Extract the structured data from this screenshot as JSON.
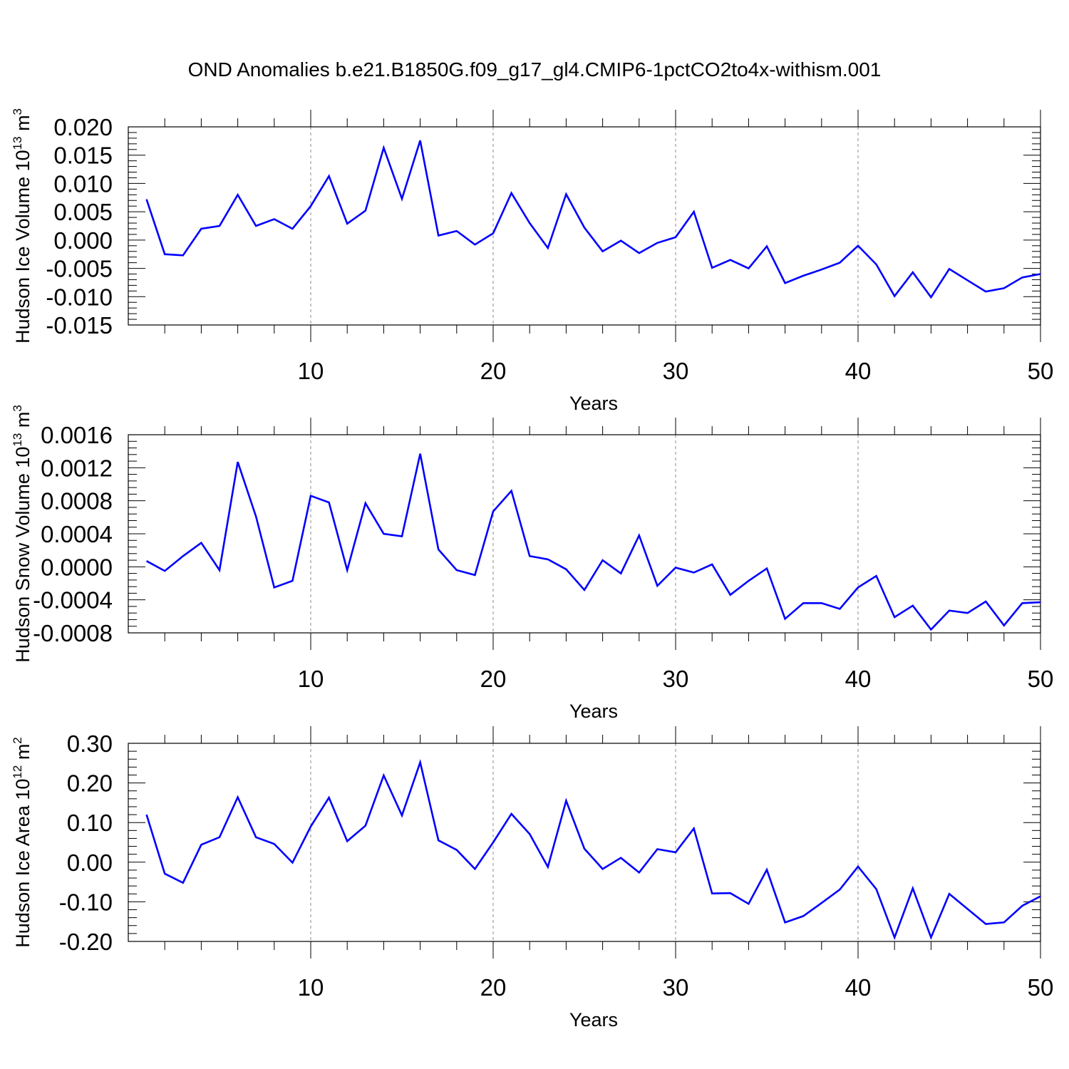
{
  "title": "OND Anomalies b.e21.B1850G.f09_g17_gl4.CMIP6-1pctCO2to4x-withism.001",
  "line_color": "#0000ff",
  "chart_data": [
    {
      "type": "line",
      "ylabel": "Hudson Ice Volume 10",
      "ylabel_sup": "13",
      "ylabel_unit": "m",
      "ylabel_unit_sup": "3",
      "xlabel": "Years",
      "xlim": [
        1,
        50
      ],
      "ylim": [
        -0.015,
        0.02
      ],
      "yticks": [
        "0.020",
        "0.015",
        "0.010",
        "0.005",
        "0.000",
        "-0.005",
        "-0.010",
        "-0.015"
      ],
      "ytick_values": [
        0.02,
        0.015,
        0.01,
        0.005,
        0.0,
        -0.005,
        -0.01,
        -0.015
      ],
      "xticks": [
        "10",
        "20",
        "30",
        "40",
        "50"
      ],
      "xtick_values": [
        10,
        20,
        30,
        40,
        50
      ],
      "grid_x": [
        10,
        20,
        30,
        40
      ],
      "x": [
        1,
        2,
        3,
        4,
        5,
        6,
        7,
        8,
        9,
        10,
        11,
        12,
        13,
        14,
        15,
        16,
        17,
        18,
        19,
        20,
        21,
        22,
        23,
        24,
        25,
        26,
        27,
        28,
        29,
        30,
        31,
        32,
        33,
        34,
        35,
        36,
        37,
        38,
        39,
        40,
        41,
        42,
        43,
        44,
        45,
        46,
        47,
        48,
        49,
        50
      ],
      "values": [
        0.0072,
        -0.0025,
        -0.0027,
        0.002,
        0.0025,
        0.008,
        0.0025,
        0.0037,
        0.002,
        0.006,
        0.0113,
        0.0029,
        0.0052,
        0.0163,
        0.0073,
        0.0176,
        0.0008,
        0.0016,
        -0.0008,
        0.0012,
        0.0083,
        0.003,
        -0.0014,
        0.0081,
        0.0022,
        -0.002,
        -0.0001,
        -0.0023,
        -0.0005,
        0.0005,
        0.005,
        -0.0049,
        -0.0035,
        -0.005,
        -0.0011,
        -0.0076,
        -0.0063,
        -0.0052,
        -0.004,
        -0.001,
        -0.0043,
        -0.0099,
        -0.0057,
        -0.0101,
        -0.0051,
        -0.0071,
        -0.0091,
        -0.0085,
        -0.0066,
        -0.006
      ]
    },
    {
      "type": "line",
      "ylabel": "Hudson Snow Volume 10",
      "ylabel_sup": "13",
      "ylabel_unit": "m",
      "ylabel_unit_sup": "3",
      "xlabel": "Years",
      "xlim": [
        1,
        50
      ],
      "ylim": [
        -0.0008,
        0.0016
      ],
      "yticks": [
        "0.0016",
        "0.0012",
        "0.0008",
        "0.0004",
        "0.0000",
        "-0.0004",
        "-0.0008"
      ],
      "ytick_values": [
        0.0016,
        0.0012,
        0.0008,
        0.0004,
        0.0,
        -0.0004,
        -0.0008
      ],
      "xticks": [
        "10",
        "20",
        "30",
        "40",
        "50"
      ],
      "xtick_values": [
        10,
        20,
        30,
        40,
        50
      ],
      "grid_x": [
        10,
        20,
        30,
        40
      ],
      "x": [
        1,
        2,
        3,
        4,
        5,
        6,
        7,
        8,
        9,
        10,
        11,
        12,
        13,
        14,
        15,
        16,
        17,
        18,
        19,
        20,
        21,
        22,
        23,
        24,
        25,
        26,
        27,
        28,
        29,
        30,
        31,
        32,
        33,
        34,
        35,
        36,
        37,
        38,
        39,
        40,
        41,
        42,
        43,
        44,
        45,
        46,
        47,
        48,
        49,
        50
      ],
      "values": [
        7e-05,
        -5e-05,
        0.00013,
        0.00029,
        -4e-05,
        0.00127,
        0.00061,
        -0.00025,
        -0.00017,
        0.00086,
        0.00078,
        -4e-05,
        0.00077,
        0.0004,
        0.00037,
        0.00137,
        0.00021,
        -4e-05,
        -0.0001,
        0.00067,
        0.00092,
        0.00013,
        9e-05,
        -3e-05,
        -0.00028,
        8e-05,
        -8e-05,
        0.00038,
        -0.00023,
        -1e-05,
        -7e-05,
        3e-05,
        -0.00034,
        -0.00017,
        -2e-05,
        -0.00063,
        -0.00044,
        -0.00044,
        -0.00051,
        -0.00025,
        -0.00011,
        -0.00061,
        -0.00047,
        -0.00076,
        -0.00053,
        -0.00056,
        -0.00042,
        -0.00071,
        -0.00044,
        -0.00043
      ]
    },
    {
      "type": "line",
      "ylabel": "Hudson Ice Area 10",
      "ylabel_sup": "12",
      "ylabel_unit": "m",
      "ylabel_unit_sup": "2",
      "xlabel": "Years",
      "xlim": [
        1,
        50
      ],
      "ylim": [
        -0.2,
        0.3
      ],
      "yticks": [
        "0.30",
        "0.20",
        "0.10",
        "0.00",
        "-0.10",
        "-0.20"
      ],
      "ytick_values": [
        0.3,
        0.2,
        0.1,
        0.0,
        -0.1,
        -0.2
      ],
      "xticks": [
        "10",
        "20",
        "30",
        "40",
        "50"
      ],
      "xtick_values": [
        10,
        20,
        30,
        40,
        50
      ],
      "grid_x": [
        10,
        20,
        30,
        40
      ],
      "x": [
        1,
        2,
        3,
        4,
        5,
        6,
        7,
        8,
        9,
        10,
        11,
        12,
        13,
        14,
        15,
        16,
        17,
        18,
        19,
        20,
        21,
        22,
        23,
        24,
        25,
        26,
        27,
        28,
        29,
        30,
        31,
        32,
        33,
        34,
        35,
        36,
        37,
        38,
        39,
        40,
        41,
        42,
        43,
        44,
        45,
        46,
        47,
        48,
        49,
        50
      ],
      "values": [
        0.12,
        -0.029,
        -0.052,
        0.044,
        0.063,
        0.164,
        0.063,
        0.046,
        -0.001,
        0.09,
        0.163,
        0.053,
        0.092,
        0.219,
        0.118,
        0.252,
        0.055,
        0.031,
        -0.017,
        0.05,
        0.122,
        0.071,
        -0.012,
        0.155,
        0.034,
        -0.017,
        0.011,
        -0.026,
        0.033,
        0.025,
        0.085,
        -0.079,
        -0.078,
        -0.105,
        -0.019,
        -0.152,
        -0.136,
        -0.103,
        -0.069,
        -0.011,
        -0.068,
        -0.19,
        -0.066,
        -0.19,
        -0.08,
        -0.118,
        -0.156,
        -0.152,
        -0.11,
        -0.086
      ]
    }
  ]
}
